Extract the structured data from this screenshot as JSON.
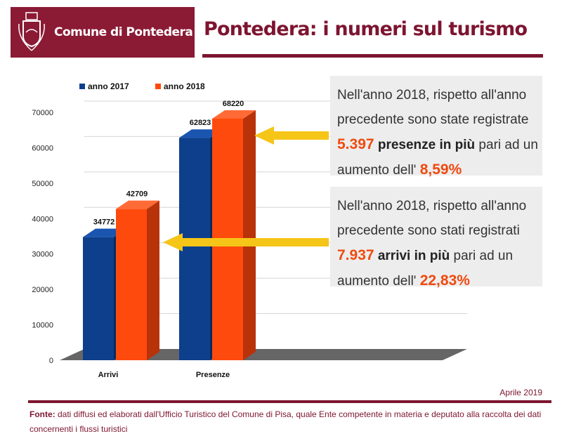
{
  "header": {
    "logo_text": "Comune di Pontedera",
    "title": "Pontedera: i numeri sul turismo"
  },
  "colors": {
    "brand": "#8b1a35",
    "series_2017": "#0d3f8c",
    "series_2018": "#ff4a0d",
    "highlight": "#f04a10",
    "arrow": "#f5c518"
  },
  "chart_data": {
    "type": "bar",
    "categories": [
      "Arrivi",
      "Presenze"
    ],
    "series": [
      {
        "name": "anno 2017",
        "values": [
          34772,
          62823
        ]
      },
      {
        "name": "anno 2018",
        "values": [
          42709,
          68220
        ]
      }
    ],
    "yticks": [
      0,
      10000,
      20000,
      30000,
      40000,
      50000,
      60000,
      70000
    ],
    "ylim": [
      0,
      70000
    ],
    "grid": true,
    "legend": "top",
    "style": "3d"
  },
  "info_boxes": [
    {
      "line1": "Nell'anno 2018, rispetto all'anno",
      "line2": "precedente sono state registrate",
      "number": "5.397",
      "label": "presenze in più",
      "after": " pari ad un",
      "line4": "aumento dell' ",
      "percent": "8,59%"
    },
    {
      "line1": "Nell'anno 2018, rispetto all'anno",
      "line2": "precedente sono stati registrati",
      "number": "7.937",
      "label": "arrivi in più",
      "after": " pari ad un",
      "line4": "aumento dell' ",
      "percent": "22,83%"
    }
  ],
  "date": "Aprile 2019",
  "footer": {
    "label": "Fonte:",
    "text": " dati diffusi ed elaborati dall'Ufficio Turistico del Comune di Pisa, quale Ente competente in materia e deputato alla raccolta dei dati concernenti i flussi turistici"
  }
}
